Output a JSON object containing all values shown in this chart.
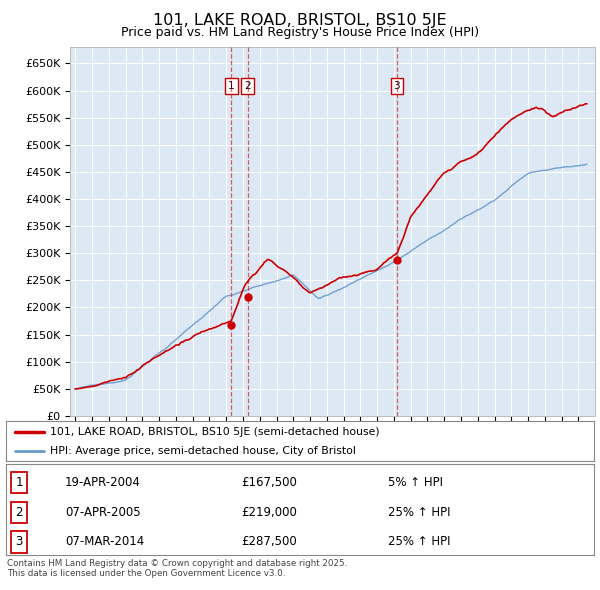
{
  "title": "101, LAKE ROAD, BRISTOL, BS10 5JE",
  "subtitle": "Price paid vs. HM Land Registry's House Price Index (HPI)",
  "background_color": "#dce9f5",
  "plot_bg_color": "#dce9f5",
  "ylim": [
    0,
    680000
  ],
  "yticks": [
    0,
    50000,
    100000,
    150000,
    200000,
    250000,
    300000,
    350000,
    400000,
    450000,
    500000,
    550000,
    600000,
    650000
  ],
  "ytick_labels": [
    "£0",
    "£50K",
    "£100K",
    "£150K",
    "£200K",
    "£250K",
    "£300K",
    "£350K",
    "£400K",
    "£450K",
    "£500K",
    "£550K",
    "£600K",
    "£650K"
  ],
  "line1_color": "#cc0000",
  "line2_color": "#6699cc",
  "sale_dates_float": [
    2004.297,
    2005.272,
    2014.181
  ],
  "sale_prices": [
    167500,
    219000,
    287500
  ],
  "sale_labels": [
    "1",
    "2",
    "3"
  ],
  "legend1_text": "101, LAKE ROAD, BRISTOL, BS10 5JE (semi-detached house)",
  "legend2_text": "HPI: Average price, semi-detached house, City of Bristol",
  "footer1": "Contains HM Land Registry data © Crown copyright and database right 2025.",
  "footer2": "This data is licensed under the Open Government Licence v3.0.",
  "table_rows": [
    {
      "num": "1",
      "date": "19-APR-2004",
      "price": "£167,500",
      "change": "5% ↑ HPI"
    },
    {
      "num": "2",
      "date": "07-APR-2005",
      "price": "£219,000",
      "change": "25% ↑ HPI"
    },
    {
      "num": "3",
      "date": "07-MAR-2014",
      "price": "£287,500",
      "change": "25% ↑ HPI"
    }
  ]
}
